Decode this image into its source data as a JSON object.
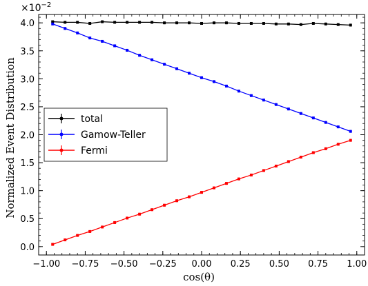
{
  "chart_data": {
    "type": "line",
    "xlabel": "cos(θ)",
    "ylabel": "Normalized Event Distribution",
    "y_scale_base": "×10",
    "y_scale_exp": "−2",
    "xlim": [
      -1.05,
      1.05
    ],
    "ylim": [
      -0.0015,
      0.0415
    ],
    "x_ticks": [
      -1.0,
      -0.75,
      -0.5,
      -0.25,
      0.0,
      0.25,
      0.5,
      0.75,
      1.0
    ],
    "x_tick_labels": [
      "−1.00",
      "−0.75",
      "−0.50",
      "−0.25",
      "0.00",
      "0.25",
      "0.50",
      "0.75",
      "1.00"
    ],
    "y_ticks": [
      0.0,
      0.005,
      0.01,
      0.015,
      0.02,
      0.025,
      0.03,
      0.035,
      0.04
    ],
    "y_tick_labels": [
      "0.0",
      "0.5",
      "1.0",
      "1.5",
      "2.0",
      "2.5",
      "3.0",
      "3.5",
      "4.0"
    ],
    "legend_position": "center-left",
    "x": [
      -0.96,
      -0.88,
      -0.8,
      -0.72,
      -0.64,
      -0.56,
      -0.48,
      -0.4,
      -0.32,
      -0.24,
      -0.16,
      -0.08,
      0.0,
      0.08,
      0.16,
      0.24,
      0.32,
      0.4,
      0.48,
      0.56,
      0.64,
      0.72,
      0.8,
      0.88,
      0.96
    ],
    "series": [
      {
        "name": "total",
        "color": "#000000",
        "values": [
          0.0402,
          0.0401,
          0.0401,
          0.0399,
          0.0402,
          0.0401,
          0.0401,
          0.0401,
          0.0401,
          0.04,
          0.04,
          0.04,
          0.0399,
          0.04,
          0.04,
          0.0399,
          0.0399,
          0.0399,
          0.0398,
          0.0398,
          0.0397,
          0.0399,
          0.0398,
          0.0397,
          0.0396
        ]
      },
      {
        "name": "Gamow-Teller",
        "color": "#0000ff",
        "values": [
          0.0398,
          0.039,
          0.0382,
          0.0373,
          0.0367,
          0.0359,
          0.0351,
          0.0342,
          0.0334,
          0.0326,
          0.0318,
          0.031,
          0.0302,
          0.0295,
          0.0287,
          0.0278,
          0.027,
          0.0262,
          0.0254,
          0.0246,
          0.0238,
          0.023,
          0.0222,
          0.0214,
          0.0206
        ]
      },
      {
        "name": "Fermi",
        "color": "#ff0000",
        "values": [
          0.0004,
          0.0012,
          0.002,
          0.0027,
          0.0035,
          0.0043,
          0.0051,
          0.0058,
          0.0066,
          0.0074,
          0.0082,
          0.0089,
          0.0097,
          0.0105,
          0.0113,
          0.0121,
          0.0128,
          0.0136,
          0.0144,
          0.0152,
          0.016,
          0.0168,
          0.0175,
          0.0183,
          0.019
        ]
      }
    ]
  }
}
